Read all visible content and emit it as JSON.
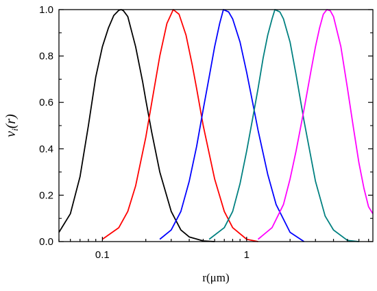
{
  "chart_data": {
    "type": "line",
    "xlabel": "r(μm)",
    "ylabel": "v",
    "ylabel_subscript": "i",
    "ylabel_suffix": "(r)",
    "x_scale": "log",
    "xlim": [
      0.05,
      7.5
    ],
    "ylim": [
      0,
      1.0
    ],
    "x_ticks": [
      {
        "value": 0.1,
        "label": "0.1"
      },
      {
        "value": 1,
        "label": "1"
      }
    ],
    "y_ticks": [
      {
        "value": 0.0,
        "label": "0.0"
      },
      {
        "value": 0.2,
        "label": "0.2"
      },
      {
        "value": 0.4,
        "label": "0.4"
      },
      {
        "value": 0.6,
        "label": "0.6"
      },
      {
        "value": 0.8,
        "label": "0.8"
      },
      {
        "value": 1.0,
        "label": "1.0"
      }
    ],
    "grid": false,
    "series": [
      {
        "color": "#000000",
        "x": [
          0.05,
          0.06,
          0.07,
          0.08,
          0.09,
          0.1,
          0.11,
          0.12,
          0.13,
          0.135,
          0.14,
          0.15,
          0.17,
          0.19,
          0.2,
          0.22,
          0.25,
          0.3,
          0.35,
          0.4,
          0.5,
          0.6
        ],
        "y": [
          0.04,
          0.12,
          0.28,
          0.5,
          0.71,
          0.84,
          0.92,
          0.975,
          0.997,
          1.0,
          0.995,
          0.97,
          0.84,
          0.69,
          0.61,
          0.47,
          0.3,
          0.13,
          0.05,
          0.02,
          0.003,
          0.0
        ]
      },
      {
        "color": "#ff0000",
        "x": [
          0.1,
          0.13,
          0.15,
          0.17,
          0.2,
          0.22,
          0.25,
          0.28,
          0.31,
          0.34,
          0.38,
          0.42,
          0.45,
          0.5,
          0.6,
          0.7,
          0.8,
          1.0,
          1.2
        ],
        "y": [
          0.01,
          0.06,
          0.13,
          0.24,
          0.45,
          0.6,
          0.8,
          0.94,
          1.0,
          0.98,
          0.89,
          0.76,
          0.66,
          0.5,
          0.27,
          0.13,
          0.06,
          0.01,
          0.0
        ]
      },
      {
        "color": "#0000ff",
        "x": [
          0.25,
          0.3,
          0.35,
          0.4,
          0.45,
          0.5,
          0.55,
          0.6,
          0.65,
          0.69,
          0.75,
          0.8,
          0.9,
          1.0,
          1.1,
          1.2,
          1.4,
          1.6,
          2.0,
          2.5
        ],
        "y": [
          0.01,
          0.05,
          0.13,
          0.26,
          0.41,
          0.57,
          0.71,
          0.84,
          0.94,
          1.0,
          0.99,
          0.96,
          0.86,
          0.73,
          0.6,
          0.48,
          0.29,
          0.16,
          0.04,
          0.0
        ]
      },
      {
        "color": "#008080",
        "x": [
          0.55,
          0.7,
          0.8,
          0.9,
          1.0,
          1.1,
          1.2,
          1.3,
          1.4,
          1.5,
          1.57,
          1.7,
          1.8,
          2.0,
          2.2,
          2.5,
          3.0,
          3.5,
          4.0,
          5.0,
          6.0
        ],
        "y": [
          0.01,
          0.06,
          0.13,
          0.25,
          0.39,
          0.53,
          0.66,
          0.79,
          0.89,
          0.96,
          1.0,
          0.99,
          0.96,
          0.86,
          0.72,
          0.52,
          0.26,
          0.11,
          0.05,
          0.005,
          0.0
        ]
      },
      {
        "color": "#ff00ff",
        "x": [
          1.2,
          1.5,
          1.8,
          2.0,
          2.2,
          2.5,
          2.8,
          3.0,
          3.2,
          3.4,
          3.6,
          3.8,
          4.0,
          4.5,
          5.0,
          5.5,
          6.0,
          6.5,
          7.0,
          7.5
        ],
        "y": [
          0.01,
          0.06,
          0.16,
          0.27,
          0.39,
          0.57,
          0.74,
          0.84,
          0.92,
          0.98,
          1.0,
          0.995,
          0.97,
          0.84,
          0.66,
          0.49,
          0.34,
          0.23,
          0.15,
          0.12
        ]
      }
    ]
  }
}
